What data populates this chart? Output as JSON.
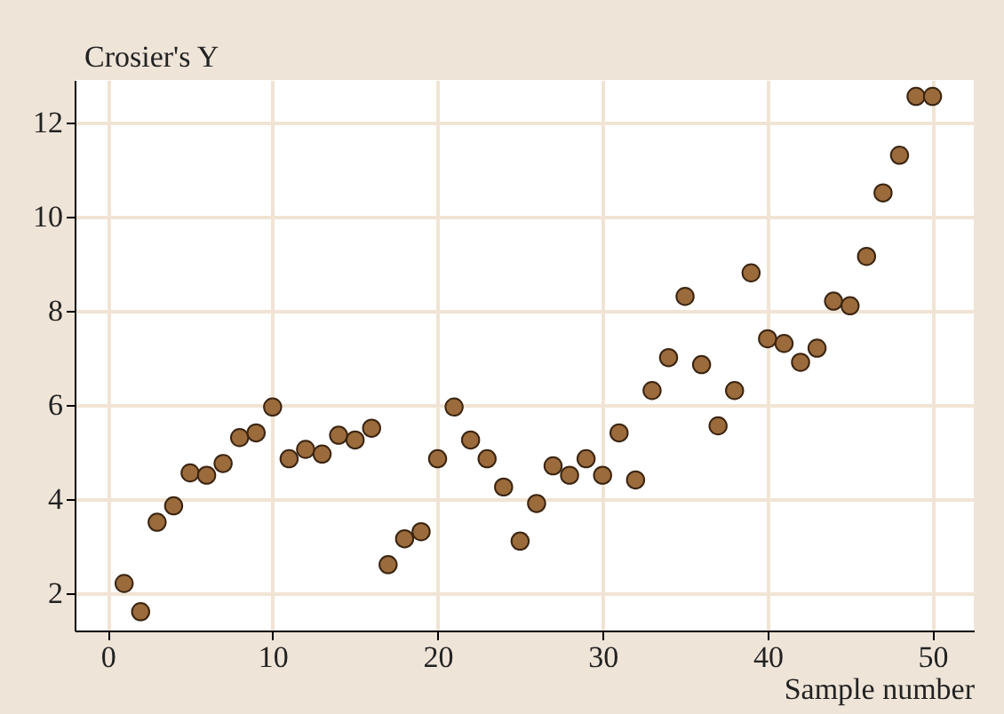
{
  "chart_data": {
    "type": "scatter",
    "xlabel": "Sample number",
    "ylabel": "Crosier's Y",
    "x": [
      1,
      2,
      3,
      4,
      5,
      6,
      7,
      8,
      9,
      10,
      11,
      12,
      13,
      14,
      15,
      16,
      17,
      18,
      19,
      20,
      21,
      22,
      23,
      24,
      25,
      26,
      27,
      28,
      29,
      30,
      31,
      32,
      33,
      34,
      35,
      36,
      37,
      38,
      39,
      40,
      41,
      42,
      43,
      44,
      45,
      46,
      47,
      48,
      49,
      50
    ],
    "values": [
      2.2,
      1.6,
      3.5,
      3.85,
      4.55,
      4.5,
      4.75,
      5.3,
      5.4,
      5.95,
      4.85,
      5.05,
      4.95,
      5.35,
      5.25,
      5.5,
      2.6,
      3.15,
      3.3,
      4.85,
      5.95,
      5.25,
      4.85,
      4.25,
      3.1,
      3.9,
      4.7,
      4.5,
      4.85,
      4.5,
      5.4,
      4.4,
      6.3,
      7.0,
      8.3,
      6.85,
      5.55,
      6.3,
      8.8,
      7.4,
      7.3,
      6.9,
      7.2,
      8.2,
      8.1,
      9.15,
      10.5,
      11.3,
      12.55,
      12.55
    ],
    "color": "#9b6b3c",
    "marker": "circle",
    "xlim": [
      -2,
      52.5
    ],
    "ylim": [
      1.2,
      12.9
    ],
    "xticks": [
      0,
      10,
      20,
      30,
      40,
      50
    ],
    "yticks": [
      2,
      4,
      6,
      8,
      10,
      12
    ],
    "grid": true
  }
}
